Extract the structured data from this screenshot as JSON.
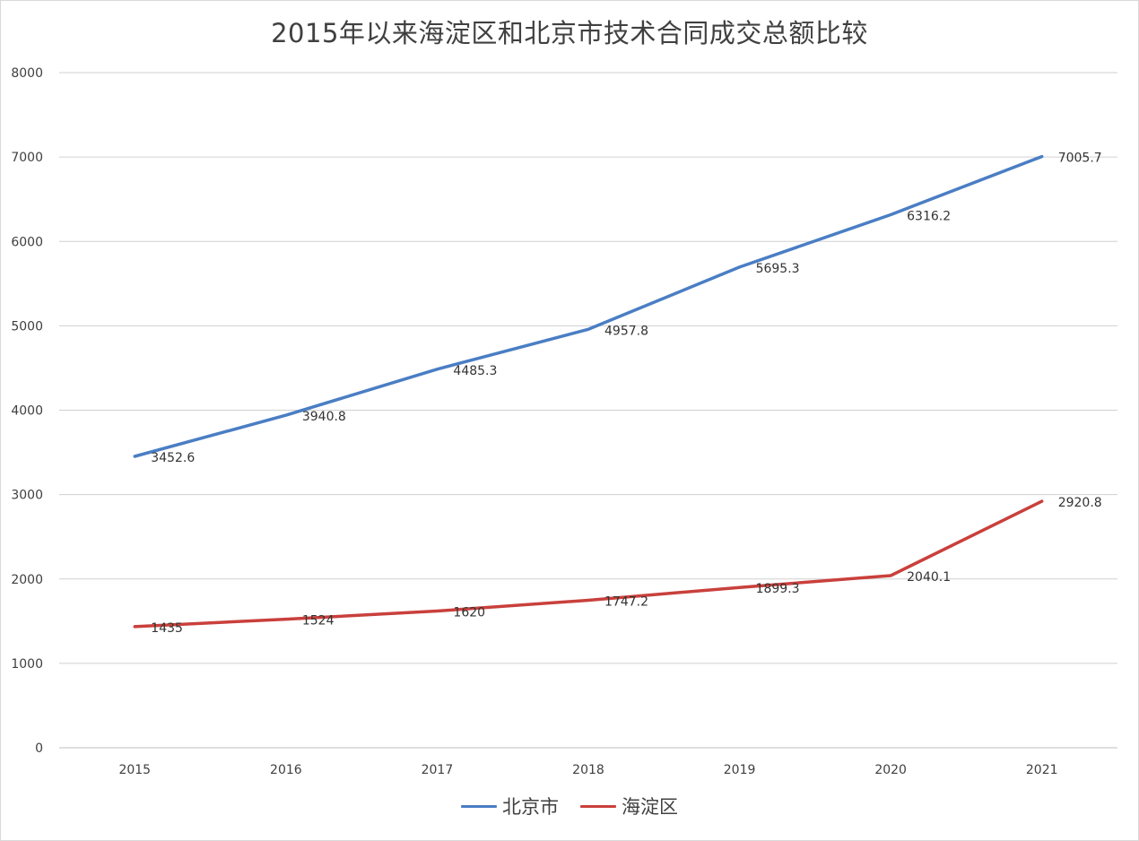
{
  "chart_data": {
    "type": "line",
    "title": "2015年以来海淀区和北京市技术合同成交总额比较",
    "xlabel": "",
    "ylabel": "",
    "x": [
      "2015",
      "2016",
      "2017",
      "2018",
      "2019",
      "2020",
      "2021"
    ],
    "ylim": [
      0,
      8000
    ],
    "yticks": [
      0,
      1000,
      2000,
      3000,
      4000,
      5000,
      6000,
      7000,
      8000
    ],
    "grid": true,
    "legend_position": "bottom",
    "series": [
      {
        "name": "北京市",
        "color": "#4a7ec4",
        "values": [
          3452.6,
          3940.8,
          4485.3,
          4957.8,
          5695.3,
          6316.2,
          7005.7
        ],
        "labels": [
          "3452.6",
          "3940.8",
          "4485.3",
          "4957.8",
          "5695.3",
          "6316.2",
          "7005.7"
        ]
      },
      {
        "name": "海淀区",
        "color": "#c9403c",
        "values": [
          1435,
          1524,
          1620,
          1747.2,
          1899.3,
          2040.1,
          2920.8
        ],
        "labels": [
          "1435",
          "1524",
          "1620",
          "1747.2",
          "1899.3",
          "2040.1",
          "2920.8"
        ]
      }
    ]
  }
}
